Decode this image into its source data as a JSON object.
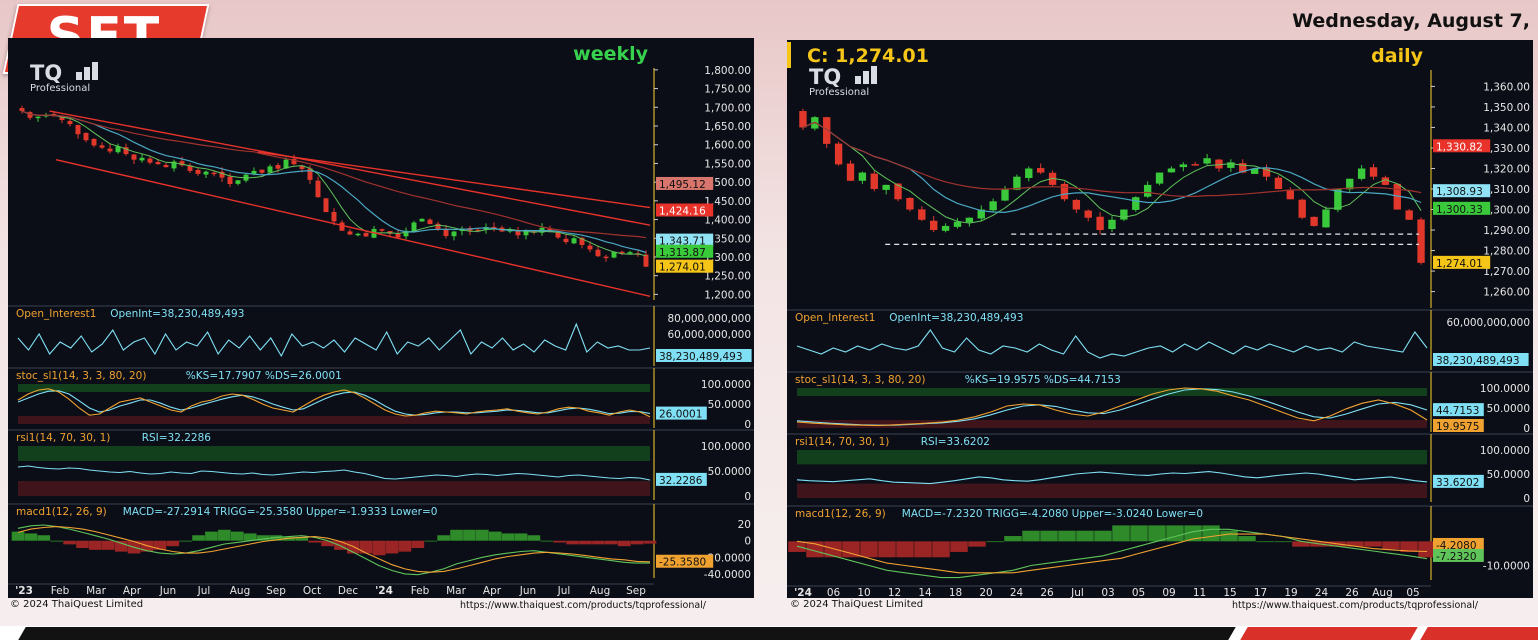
{
  "header": {
    "badge": "SET",
    "date": "Wednesday, August 7,"
  },
  "footer": {
    "left_copyright": "© 2024  ThaiQuest Limited",
    "left_url": "https://www.thaiquest.com/products/tqprofessional/",
    "right_copyright": "© 2024  ThaiQuest Limited",
    "right_url": "https://www.thaiquest.com/products/tqprofessional/"
  },
  "colors": {
    "panel_bg": "#0b0e17",
    "up_candle": "#39c93a",
    "down_candle": "#e2382b",
    "channel_line": "#e8322a",
    "ma_blue": "#4aa7c2",
    "ma_green": "#5fc45a",
    "ma_red": "#a1322d",
    "cyan_line": "#7fe0f5",
    "orange_line": "#f0a231",
    "title_green": "#37d14d",
    "title_yellow": "#f5c518",
    "zone_green": "#13401c",
    "zone_red": "#3f141a"
  },
  "chart_data": [
    {
      "type": "candlestick",
      "logo": "TQ",
      "logo_sub": "Professional",
      "title": "weekly",
      "price_axis": {
        "ticks": [
          "1,800.00",
          "1,750.00",
          "1,700.00",
          "1,650.00",
          "1,600.00",
          "1,550.00",
          "1,500.00",
          "1,450.00",
          "1,400.00",
          "1,350.00",
          "1,300.00",
          "1,250.00",
          "1,200.00"
        ],
        "ylim": [
          1185,
          1805
        ]
      },
      "price_badges": [
        {
          "label": "1,495.12",
          "value": 1495.12,
          "bg": "#d8756c",
          "color": "#111"
        },
        {
          "label": "1,424.16",
          "value": 1424.16,
          "bg": "#e8322a",
          "color": "#fff"
        },
        {
          "label": "1,343.71",
          "value": 1343.71,
          "bg": "#8fe3f5",
          "color": "#111"
        },
        {
          "label": "1,313.87",
          "value": 1313.87,
          "bg": "#39c93a",
          "color": "#111"
        },
        {
          "label": "1,274.01",
          "value": 1274.01,
          "bg": "#f5c518",
          "color": "#111"
        }
      ],
      "x_tick_labels": [
        "'23",
        "Feb",
        "Mar",
        "Apr",
        "Jun",
        "Jul",
        "Aug",
        "Sep",
        "Oct",
        "Dec",
        "'24",
        "Feb",
        "Mar",
        "Apr",
        "Jun",
        "Jul",
        "Aug",
        "Sep"
      ],
      "closes": [
        1690,
        1672,
        1675,
        1680,
        1676,
        1666,
        1655,
        1628,
        1612,
        1598,
        1592,
        1582,
        1596,
        1575,
        1560,
        1565,
        1552,
        1548,
        1540,
        1555,
        1545,
        1530,
        1522,
        1528,
        1525,
        1512,
        1495,
        1505,
        1520,
        1530,
        1525,
        1542,
        1536,
        1560,
        1548,
        1535,
        1506,
        1460,
        1420,
        1395,
        1370,
        1360,
        1362,
        1355,
        1375,
        1370,
        1362,
        1352,
        1370,
        1392,
        1402,
        1388,
        1374,
        1356,
        1368,
        1376,
        1370,
        1372,
        1380,
        1376,
        1368,
        1372,
        1358,
        1368,
        1365,
        1378,
        1368,
        1352,
        1340,
        1350,
        1332,
        1320,
        1302,
        1298,
        1314,
        1310,
        1313,
        1306,
        1274
      ],
      "indicators": {
        "open_interest": {
          "label": "Open_Interest1",
          "value_text": "OpenInt=38,230,489,493",
          "ticks": [
            "80,000,000,000",
            "60,000,000,000"
          ],
          "badge": "38,230,489,493",
          "series": [
            0.6,
            0.3,
            0.7,
            0.2,
            0.5,
            0.35,
            0.65,
            0.25,
            0.45,
            0.8,
            0.3,
            0.5,
            0.6,
            0.2,
            0.7,
            0.3,
            0.5,
            0.4,
            0.75,
            0.2,
            0.55,
            0.35,
            0.65,
            0.3,
            0.6,
            0.15,
            0.7,
            0.4,
            0.5,
            0.35,
            0.55,
            0.25,
            0.6,
            0.45,
            0.3,
            0.75,
            0.2,
            0.5,
            0.4,
            0.6,
            0.3,
            0.55,
            0.8,
            0.2,
            0.5,
            0.35,
            0.6,
            0.3,
            0.45,
            0.25,
            0.55,
            0.4,
            0.3,
            0.95,
            0.25,
            0.5,
            0.35,
            0.4,
            0.3,
            0.3,
            0.35
          ]
        },
        "stochastic": {
          "label": "stoc_sl1(14, 3, 3, 80, 20)",
          "value_text": "%KS=17.7907 %DS=26.0001",
          "ticks": [
            "100.0000",
            "50.0000",
            "0"
          ],
          "badge": "26.0001",
          "ks": [
            60,
            75,
            85,
            88,
            80,
            62,
            40,
            22,
            25,
            40,
            55,
            60,
            65,
            55,
            45,
            35,
            30,
            45,
            55,
            60,
            70,
            75,
            72,
            62,
            50,
            40,
            35,
            30,
            45,
            60,
            72,
            80,
            85,
            78,
            65,
            50,
            35,
            25,
            20,
            22,
            28,
            32,
            30,
            28,
            25,
            30,
            33,
            35,
            38,
            32,
            28,
            25,
            30,
            38,
            42,
            40,
            32,
            28,
            22,
            30,
            35,
            30,
            18
          ],
          "ds": [
            55,
            65,
            75,
            82,
            83,
            75,
            58,
            40,
            30,
            35,
            45,
            52,
            60,
            60,
            52,
            42,
            35,
            40,
            48,
            55,
            62,
            68,
            72,
            68,
            60,
            50,
            42,
            35,
            38,
            50,
            62,
            72,
            78,
            80,
            72,
            60,
            45,
            32,
            25,
            22,
            24,
            28,
            30,
            30,
            28,
            28,
            30,
            32,
            35,
            34,
            31,
            28,
            28,
            33,
            38,
            40,
            37,
            32,
            26,
            27,
            31,
            31,
            26
          ]
        },
        "rsi": {
          "label": "rsi1(14, 70, 30, 1)",
          "value_text": "RSI=32.2286",
          "ticks": [
            "100.0000",
            "50.0000",
            "0"
          ],
          "badge": "32.2286",
          "series": [
            58,
            60,
            57,
            55,
            54,
            56,
            55,
            52,
            50,
            48,
            47,
            49,
            46,
            44,
            45,
            48,
            46,
            45,
            50,
            49,
            47,
            45,
            44,
            46,
            43,
            42,
            44,
            46,
            48,
            47,
            49,
            50,
            52,
            48,
            45,
            40,
            35,
            34,
            36,
            38,
            40,
            42,
            41,
            39,
            42,
            44,
            43,
            41,
            43,
            45,
            44,
            42,
            40,
            38,
            41,
            42,
            40,
            38,
            36,
            35,
            37,
            36,
            32
          ]
        },
        "macd": {
          "label": "macd1(12, 26, 9)",
          "value_text": "MACD=-27.2914 TRIGG=-25.3580 Upper=-1.9333 Lower=0",
          "ticks": [
            "20",
            "0",
            "-20.0000",
            "-40.0000"
          ],
          "badge": "-25.3580",
          "macd": [
            15,
            18,
            19,
            17,
            14,
            10,
            6,
            2,
            -3,
            -8,
            -12,
            -15,
            -16,
            -15,
            -12,
            -8,
            -4,
            -2,
            0,
            2,
            4,
            5,
            6,
            4,
            0,
            -6,
            -14,
            -22,
            -30,
            -36,
            -40,
            -41,
            -38,
            -34,
            -28,
            -24,
            -20,
            -17,
            -15,
            -13,
            -12,
            -14,
            -16,
            -18,
            -20,
            -22,
            -24,
            -26,
            -27,
            -27
          ],
          "trigg": [
            10,
            14,
            16,
            17,
            16,
            14,
            11,
            7,
            3,
            -1,
            -6,
            -10,
            -13,
            -15,
            -15,
            -13,
            -10,
            -7,
            -4,
            -1,
            1,
            3,
            4,
            5,
            3,
            -1,
            -7,
            -15,
            -22,
            -29,
            -34,
            -37,
            -38,
            -37,
            -34,
            -30,
            -26,
            -22,
            -19,
            -17,
            -15,
            -14,
            -15,
            -16,
            -18,
            -20,
            -22,
            -23,
            -25,
            -25.4
          ],
          "ylim": [
            -45,
            25
          ]
        }
      },
      "footer": {
        "copyright": "© 2024  ThaiQuest Limited",
        "url": "https://www.thaiquest.com/products/tqprofessional/"
      }
    },
    {
      "type": "candlestick",
      "logo": "TQ",
      "logo_sub": "Professional",
      "title": "daily",
      "close_text": "C: 1,274.01",
      "price_axis": {
        "ticks": [
          "1,360.00",
          "1,350.00",
          "1,340.00",
          "1,330.00",
          "1,320.00",
          "1,310.00",
          "1,300.00",
          "1,290.00",
          "1,280.00",
          "1,270.00",
          "1,260.00"
        ],
        "ylim": [
          1252,
          1368
        ]
      },
      "price_badges": [
        {
          "label": "1,330.82",
          "value": 1330.82,
          "bg": "#e8322a",
          "color": "#fff"
        },
        {
          "label": "1,308.93",
          "value": 1308.93,
          "bg": "#8fe3f5",
          "color": "#111"
        },
        {
          "label": "1,300.33",
          "value": 1300.33,
          "bg": "#39c93a",
          "color": "#111"
        },
        {
          "label": "1,274.01",
          "value": 1274.01,
          "bg": "#f5c518",
          "color": "#111"
        }
      ],
      "support_lines": [
        1288,
        1283
      ],
      "x_tick_labels": [
        "'24",
        "06",
        "10",
        "12",
        "14",
        "18",
        "20",
        "24",
        "26",
        "Jul",
        "03",
        "05",
        "09",
        "11",
        "15",
        "17",
        "19",
        "24",
        "26",
        "Aug",
        "05"
      ],
      "closes": [
        1340,
        1345,
        1332,
        1322,
        1314,
        1318,
        1310,
        1312,
        1305,
        1300,
        1295,
        1290,
        1292,
        1294,
        1296,
        1300,
        1304,
        1310,
        1316,
        1320,
        1318,
        1312,
        1305,
        1300,
        1296,
        1290,
        1295,
        1300,
        1306,
        1312,
        1318,
        1320,
        1322,
        1322,
        1325,
        1320,
        1323,
        1318,
        1320,
        1316,
        1310,
        1305,
        1296,
        1292,
        1300,
        1310,
        1315,
        1320,
        1316,
        1312,
        1300,
        1295,
        1274
      ],
      "indicators": {
        "open_interest": {
          "label": "Open_Interest1",
          "value_text": "OpenInt=38,230,489,493",
          "ticks": [
            "60,000,000,000"
          ],
          "badge": "38,230,489,493",
          "series": [
            0.5,
            0.4,
            0.3,
            0.45,
            0.35,
            0.5,
            0.4,
            0.55,
            0.45,
            0.4,
            0.5,
            0.9,
            0.45,
            0.35,
            0.7,
            0.4,
            0.3,
            0.5,
            0.45,
            0.35,
            0.55,
            0.4,
            0.3,
            0.75,
            0.35,
            0.2,
            0.3,
            0.25,
            0.35,
            0.45,
            0.5,
            0.35,
            0.55,
            0.4,
            0.6,
            0.45,
            0.3,
            0.5,
            0.4,
            0.55,
            0.45,
            0.35,
            0.5,
            0.4,
            0.45,
            0.35,
            0.6,
            0.5,
            0.45,
            0.4,
            0.35,
            0.85,
            0.45
          ]
        },
        "stochastic": {
          "label": "stoc_sl1(14, 3, 3, 80, 20)",
          "value_text": "%KS=19.9575 %DS=44.7153",
          "ticks": [
            "100.0000",
            "50.0000",
            "0"
          ],
          "badge_ks": "19.9575",
          "badge_ds": "44.7153",
          "ks": [
            15,
            12,
            10,
            8,
            7,
            6,
            8,
            10,
            12,
            15,
            20,
            28,
            40,
            55,
            60,
            58,
            45,
            35,
            30,
            40,
            55,
            70,
            85,
            95,
            100,
            98,
            92,
            80,
            70,
            55,
            40,
            25,
            18,
            30,
            48,
            62,
            70,
            60,
            45,
            20
          ],
          "ds": [
            18,
            15,
            12,
            10,
            8,
            7,
            7,
            9,
            11,
            13,
            17,
            23,
            33,
            45,
            55,
            58,
            54,
            45,
            38,
            36,
            45,
            58,
            72,
            85,
            95,
            98,
            96,
            90,
            80,
            68,
            54,
            40,
            28,
            25,
            35,
            48,
            60,
            64,
            58,
            45
          ]
        },
        "rsi": {
          "label": "rsi1(14, 70, 30, 1)",
          "value_text": "RSI=33.6202",
          "ticks": [
            "100.0000",
            "50.0000",
            "0"
          ],
          "badge": "33.6202",
          "series": [
            38,
            36,
            35,
            34,
            36,
            38,
            40,
            36,
            33,
            32,
            31,
            30,
            33,
            36,
            40,
            44,
            42,
            38,
            36,
            35,
            38,
            42,
            46,
            50,
            52,
            54,
            52,
            50,
            48,
            47,
            50,
            52,
            51,
            53,
            55,
            52,
            48,
            44,
            42,
            45,
            48,
            50,
            52,
            50,
            46,
            42,
            38,
            40,
            42,
            44,
            40,
            36,
            33.6
          ]
        },
        "macd": {
          "label": "macd1(12, 26, 9)",
          "value_text": "MACD=-7.2320 TRIGG=-4.2080 Upper=-3.0240 Lower=0",
          "ticks": [
            "-10.0000"
          ],
          "badge_trigg": "-4.2080",
          "badge_macd": "-7.2320",
          "macd": [
            -2,
            -4,
            -6,
            -8,
            -10,
            -12,
            -13,
            -14,
            -15,
            -15,
            -14,
            -13,
            -12,
            -10,
            -9,
            -8,
            -7,
            -6,
            -4,
            -2,
            0,
            2,
            4,
            5,
            5,
            4,
            3,
            2,
            0,
            -1,
            -2,
            -3,
            -4,
            -5,
            -6,
            -7.2
          ],
          "trigg": [
            0,
            -1,
            -3,
            -5,
            -7,
            -9,
            -10,
            -11,
            -12,
            -13,
            -13,
            -13,
            -13,
            -12,
            -11,
            -10,
            -9,
            -8,
            -7,
            -5,
            -3,
            -1,
            1,
            2,
            3,
            3,
            3,
            2,
            1,
            0,
            -1,
            -2,
            -3,
            -3.5,
            -4,
            -4.2
          ],
          "ylim": [
            -16,
            8
          ]
        }
      },
      "footer": {
        "copyright": "© 2024  ThaiQuest Limited",
        "url": "https://www.thaiquest.com/products/tqprofessional/"
      }
    }
  ]
}
